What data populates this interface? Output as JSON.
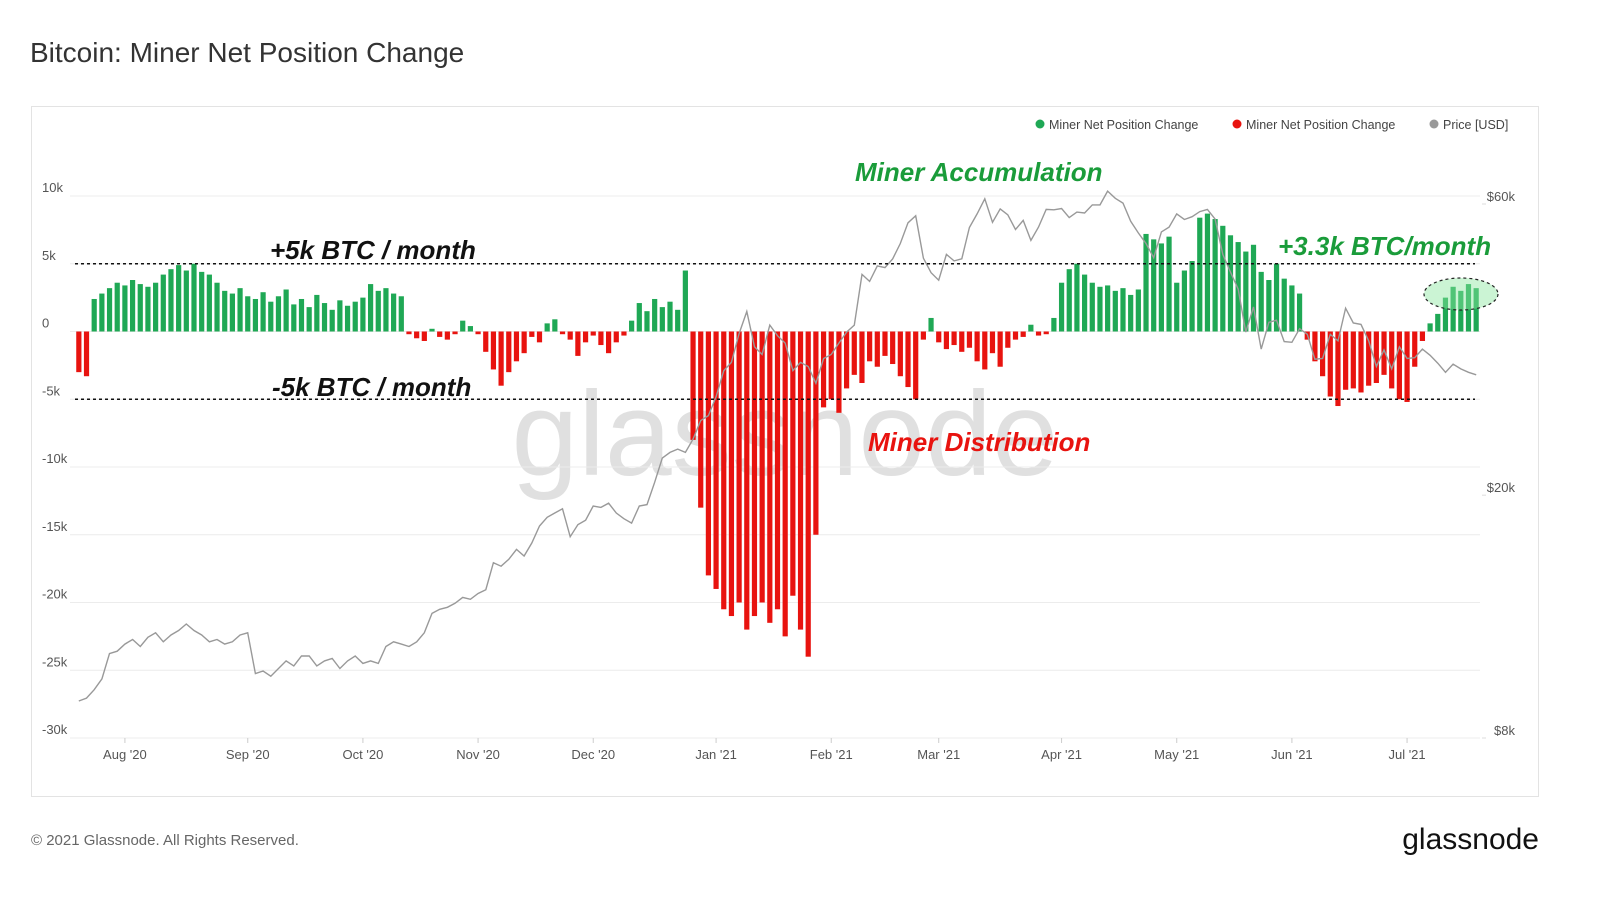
{
  "chart_data": {
    "type": "bar",
    "title": "Bitcoin: Miner Net Position Change",
    "watermark": "glassnode",
    "copyright": "© 2021 Glassnode. All Rights Reserved.",
    "logo": "glassnode",
    "legend": "top-right",
    "grid": true,
    "ylim": [
      -30000,
      10000
    ],
    "yticks": [
      {
        "value": 10000,
        "label": "10k"
      },
      {
        "value": 5000,
        "label": "5k"
      },
      0,
      {
        "value": -5000,
        "label": "-5k"
      },
      {
        "value": -10000,
        "label": "-10k"
      },
      {
        "value": -15000,
        "label": "-15k"
      },
      {
        "value": -20000,
        "label": "-20k"
      },
      {
        "value": -25000,
        "label": "-25k"
      },
      {
        "value": -30000,
        "label": "-30k"
      }
    ],
    "y2lim": [
      8000,
      60000
    ],
    "y2log": true,
    "y2ticks": [
      {
        "value": 60000,
        "label": "$60k"
      },
      {
        "value": 20000,
        "label": "$20k"
      },
      {
        "value": 8000,
        "label": "$8k"
      }
    ],
    "reference_lines": [
      {
        "value": 5000,
        "label": "+5k BTC / month"
      },
      {
        "value": -5000,
        "label": "-5k BTC / month"
      }
    ],
    "annotations": [
      {
        "text": "Miner Accumulation",
        "color": "#1a9c3a"
      },
      {
        "text": "Miner Distribution",
        "color": "#e8130f"
      },
      {
        "text": "+3.3k BTC/month",
        "color": "#1a9c3a"
      }
    ],
    "categories": [
      null,
      null,
      null,
      null,
      null,
      null,
      "Aug '20",
      null,
      null,
      null,
      null,
      null,
      null,
      null,
      null,
      null,
      null,
      null,
      null,
      null,
      null,
      null,
      "Sep '20",
      null,
      null,
      null,
      null,
      null,
      null,
      null,
      null,
      null,
      null,
      null,
      null,
      null,
      null,
      "Oct '20",
      null,
      null,
      null,
      null,
      null,
      null,
      null,
      null,
      null,
      null,
      null,
      null,
      null,
      null,
      "Nov '20",
      null,
      null,
      null,
      null,
      null,
      null,
      null,
      null,
      null,
      null,
      null,
      null,
      null,
      null,
      "Dec '20",
      null,
      null,
      null,
      null,
      null,
      null,
      null,
      null,
      null,
      null,
      null,
      null,
      null,
      null,
      null,
      "Jan '21",
      null,
      null,
      null,
      null,
      null,
      null,
      null,
      null,
      null,
      null,
      null,
      null,
      null,
      null,
      "Feb '21",
      null,
      null,
      null,
      null,
      null,
      null,
      null,
      null,
      null,
      null,
      null,
      null,
      null,
      "Mar '21",
      null,
      null,
      null,
      null,
      null,
      null,
      null,
      null,
      null,
      null,
      null,
      null,
      null,
      null,
      null,
      "Apr '21",
      null,
      null,
      null,
      null,
      null,
      null,
      null,
      null,
      null,
      null,
      null,
      null,
      null,
      null,
      "May '21",
      null,
      null,
      null,
      null,
      null,
      null,
      null,
      null,
      null,
      null,
      null,
      null,
      null,
      null,
      "Jun '21",
      null,
      null,
      null,
      null,
      null,
      null,
      null,
      null,
      null,
      null,
      null,
      null,
      null,
      null,
      "Jul '21",
      null,
      null,
      null,
      null,
      null,
      null,
      null,
      null,
      null
    ],
    "series": [
      {
        "name": "Miner Net Position Change",
        "color": "#1fa855",
        "values": [
          null,
          null,
          2400,
          2800,
          3200,
          3600,
          3400,
          3800,
          3500,
          3300,
          3600,
          4200,
          4600,
          4900,
          4500,
          5000,
          4400,
          4200,
          3600,
          3000,
          2800,
          3200,
          2600,
          2400,
          2900,
          2200,
          2600,
          3100,
          2000,
          2400,
          1800,
          2700,
          2100,
          1600,
          2300,
          1900,
          2200,
          2500,
          3500,
          3000,
          3200,
          2800,
          2600,
          null,
          null,
          null,
          200,
          null,
          null,
          null,
          800,
          400,
          null,
          null,
          null,
          null,
          null,
          null,
          null,
          null,
          null,
          600,
          900,
          null,
          null,
          null,
          null,
          null,
          null,
          null,
          null,
          null,
          800,
          2100,
          1500,
          2400,
          1800,
          2200,
          1600,
          4500,
          null,
          null,
          null,
          null,
          null,
          null,
          null,
          null,
          null,
          null,
          null,
          null,
          null,
          null,
          null,
          null,
          null,
          null,
          null,
          null,
          null,
          null,
          null,
          null,
          null,
          null,
          null,
          null,
          null,
          null,
          null,
          1000,
          null,
          null,
          null,
          null,
          null,
          null,
          null,
          null,
          null,
          null,
          null,
          null,
          500,
          null,
          null,
          1000,
          3600,
          4600,
          5000,
          4200,
          3600,
          3300,
          3400,
          3000,
          3200,
          2700,
          3100,
          7200,
          6800,
          6500,
          7000,
          3600,
          4500,
          5200,
          8400,
          8700,
          8300,
          7800,
          7100,
          6600,
          5900,
          6400,
          4400,
          3800,
          5000,
          3900,
          3400,
          2800,
          null,
          null,
          null,
          null,
          null,
          null,
          null,
          null,
          null,
          null,
          null,
          null,
          null,
          null,
          null,
          null,
          600,
          1300,
          2500,
          3300,
          3000,
          3500,
          3200
        ]
      },
      {
        "name": "Miner Net Position Change",
        "color": "#e8130f",
        "values": [
          -3000,
          -3300,
          null,
          null,
          null,
          null,
          null,
          null,
          null,
          null,
          null,
          null,
          null,
          null,
          null,
          null,
          null,
          null,
          null,
          null,
          null,
          null,
          null,
          null,
          null,
          null,
          null,
          null,
          null,
          null,
          null,
          null,
          null,
          null,
          null,
          null,
          null,
          null,
          null,
          null,
          null,
          null,
          null,
          -200,
          -500,
          -700,
          null,
          -400,
          -600,
          -200,
          null,
          null,
          -200,
          -1500,
          -2800,
          -4000,
          -3000,
          -2200,
          -1600,
          -400,
          -800,
          null,
          null,
          -200,
          -600,
          -1800,
          -800,
          -300,
          -1000,
          -1600,
          -800,
          -300,
          null,
          null,
          null,
          null,
          null,
          null,
          null,
          null,
          -8000,
          -13000,
          -18000,
          -19000,
          -20500,
          -21000,
          -20000,
          -22000,
          -21000,
          -20000,
          -21500,
          -20500,
          -22500,
          -19500,
          -22000,
          -24000,
          -15000,
          -5600,
          -5000,
          -6000,
          -4200,
          -3200,
          -3800,
          -2200,
          -2600,
          -1800,
          -2400,
          -3300,
          -4100,
          -5000,
          -600,
          null,
          -800,
          -1300,
          -1000,
          -1500,
          -1200,
          -2200,
          -2800,
          -1600,
          -2600,
          -1200,
          -600,
          -400,
          null,
          -300,
          -200,
          null,
          null,
          null,
          null,
          null,
          null,
          null,
          null,
          null,
          null,
          null,
          null,
          null,
          null,
          null,
          null,
          null,
          null,
          null,
          null,
          null,
          null,
          null,
          null,
          null,
          null,
          null,
          null,
          null,
          null,
          null,
          null,
          null,
          -600,
          -2200,
          -3300,
          -4800,
          -5500,
          -4300,
          -4200,
          -4500,
          -4000,
          -3800,
          -3200,
          -4200,
          -5000,
          -5200,
          -2600,
          -700,
          null,
          null,
          null,
          null,
          null,
          null,
          null
        ]
      },
      {
        "name": "Price [USD]",
        "color": "#999999",
        "type": "line",
        "axis": "y2",
        "values": [
          9200,
          9300,
          9600,
          10000,
          11000,
          11100,
          11400,
          11600,
          11300,
          11700,
          11900,
          11500,
          11800,
          12000,
          12300,
          12000,
          11800,
          11500,
          11600,
          11400,
          11500,
          11800,
          11900,
          10200,
          10300,
          10100,
          10400,
          10700,
          10500,
          10900,
          10900,
          10500,
          10700,
          10800,
          10400,
          10700,
          10900,
          10600,
          10700,
          10600,
          11300,
          11500,
          11400,
          11300,
          11500,
          11900,
          12800,
          13000,
          13100,
          13300,
          13600,
          13500,
          13800,
          14000,
          15500,
          15300,
          15700,
          16300,
          15900,
          16700,
          17800,
          18400,
          18700,
          19000,
          17100,
          17900,
          18200,
          19200,
          19100,
          19400,
          18700,
          18300,
          18000,
          19200,
          19300,
          21000,
          23000,
          23500,
          23800,
          23500,
          24700,
          26500,
          27000,
          29000,
          32000,
          33000,
          36800,
          40000,
          35000,
          34000,
          38000,
          36500,
          35500,
          32000,
          33000,
          32500,
          30500,
          33500,
          34000,
          35500,
          37000,
          38000,
          46000,
          44800,
          47500,
          47200,
          48800,
          51700,
          55900,
          57400,
          48900,
          46300,
          45000,
          49600,
          48400,
          48800,
          54900,
          57800,
          61200,
          56000,
          58900,
          57600,
          54500,
          56400,
          52300,
          55000,
          58800,
          58700,
          59000,
          57000,
          58200,
          58000,
          59800,
          59800,
          63000,
          61300,
          60200,
          56200,
          53800,
          51700,
          49000,
          54000,
          55000,
          57800,
          56600,
          57200,
          58300,
          58800,
          56700,
          49600,
          46400,
          43500,
          37000,
          40700,
          34700,
          38400,
          38700,
          35700,
          35600,
          37500,
          36700,
          33400,
          33500,
          36700,
          35800,
          40500,
          38300,
          38100,
          35800,
          32500,
          34600,
          32200,
          35000,
          33500,
          33600,
          34700,
          33900,
          32900,
          31800,
          32800,
          32200,
          31800,
          31500
        ]
      }
    ]
  }
}
